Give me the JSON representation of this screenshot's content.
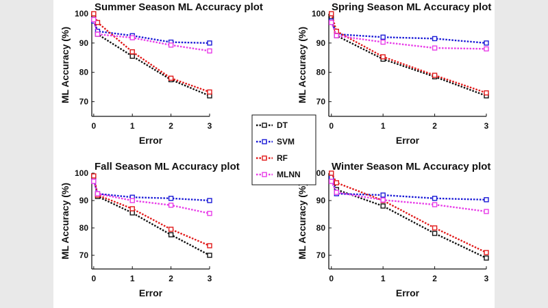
{
  "chart_data": [
    {
      "type": "line",
      "title": "Summer Season ML Accuracy plot",
      "xlabel": "Error",
      "ylabel": "ML Accuracy (%)",
      "x": [
        0,
        0.1,
        1,
        2,
        3
      ],
      "xticks": [
        0,
        1,
        2,
        3
      ],
      "yticks": [
        70,
        80,
        90,
        100
      ],
      "xlim": [
        -0.05,
        3
      ],
      "ylim": [
        65,
        100
      ],
      "series": [
        {
          "name": "DT",
          "values": [
            99.5,
            93.0,
            85.5,
            77.5,
            72.0
          ]
        },
        {
          "name": "SVM",
          "values": [
            97.5,
            94.0,
            92.5,
            90.3,
            90.0
          ]
        },
        {
          "name": "RF",
          "values": [
            100,
            97.0,
            87.0,
            78.0,
            73.3
          ]
        },
        {
          "name": "MLNN",
          "values": [
            98.0,
            93.0,
            91.8,
            89.3,
            87.3
          ]
        }
      ]
    },
    {
      "type": "line",
      "title": "Spring Season ML Accuracy plot",
      "xlabel": "Error",
      "ylabel": "ML Accuracy (%)",
      "x": [
        0,
        0.1,
        1,
        2,
        3
      ],
      "xticks": [
        0,
        1,
        2,
        3
      ],
      "yticks": [
        70,
        80,
        90,
        100
      ],
      "xlim": [
        -0.05,
        3
      ],
      "ylim": [
        65,
        100
      ],
      "series": [
        {
          "name": "DT",
          "values": [
            99.0,
            92.5,
            84.5,
            78.5,
            72.0
          ]
        },
        {
          "name": "SVM",
          "values": [
            97.5,
            93.0,
            92.0,
            91.5,
            90.0
          ]
        },
        {
          "name": "RF",
          "values": [
            100,
            94.0,
            85.3,
            79.0,
            73.0
          ]
        },
        {
          "name": "MLNN",
          "values": [
            97.0,
            92.5,
            90.3,
            88.3,
            88.0
          ]
        }
      ]
    },
    {
      "type": "line",
      "title": "Fall Season ML Accuracy plot",
      "xlabel": "Error",
      "ylabel": "ML Accuracy (%)",
      "x": [
        0,
        0.1,
        1,
        2,
        3
      ],
      "xticks": [
        0,
        1,
        2,
        3
      ],
      "yticks": [
        70,
        80,
        90,
        100
      ],
      "xlim": [
        -0.05,
        3
      ],
      "ylim": [
        65,
        100
      ],
      "series": [
        {
          "name": "DT",
          "values": [
            98.5,
            91.5,
            85.5,
            77.5,
            70.0
          ]
        },
        {
          "name": "SVM",
          "values": [
            97.5,
            92.5,
            91.2,
            90.8,
            90.0
          ]
        },
        {
          "name": "RF",
          "values": [
            99.0,
            92.0,
            87.0,
            79.5,
            73.5
          ]
        },
        {
          "name": "MLNN",
          "values": [
            97.0,
            92.5,
            90.0,
            88.3,
            85.3
          ]
        }
      ]
    },
    {
      "type": "line",
      "title": "Winter Season ML Accuracy plot",
      "xlabel": "Error",
      "ylabel": "ML Accuracy (%)",
      "x": [
        0,
        0.1,
        1,
        2,
        3
      ],
      "xticks": [
        0,
        1,
        2,
        3
      ],
      "yticks": [
        70,
        80,
        90,
        100
      ],
      "xlim": [
        -0.05,
        3
      ],
      "ylim": [
        65,
        100
      ],
      "series": [
        {
          "name": "DT",
          "values": [
            99.0,
            94.0,
            88.0,
            78.0,
            69.0
          ]
        },
        {
          "name": "SVM",
          "values": [
            98.5,
            92.5,
            92.0,
            90.8,
            90.3
          ]
        },
        {
          "name": "RF",
          "values": [
            100,
            96.5,
            90.0,
            80.0,
            71.0
          ]
        },
        {
          "name": "MLNN",
          "values": [
            97.0,
            93.0,
            90.2,
            88.5,
            86.0
          ]
        }
      ]
    }
  ],
  "legend": [
    {
      "name": "DT",
      "color": "#111111"
    },
    {
      "name": "SVM",
      "color": "#1a1ad6"
    },
    {
      "name": "RF",
      "color": "#e01818"
    },
    {
      "name": "MLNN",
      "color": "#e83ce8"
    }
  ]
}
